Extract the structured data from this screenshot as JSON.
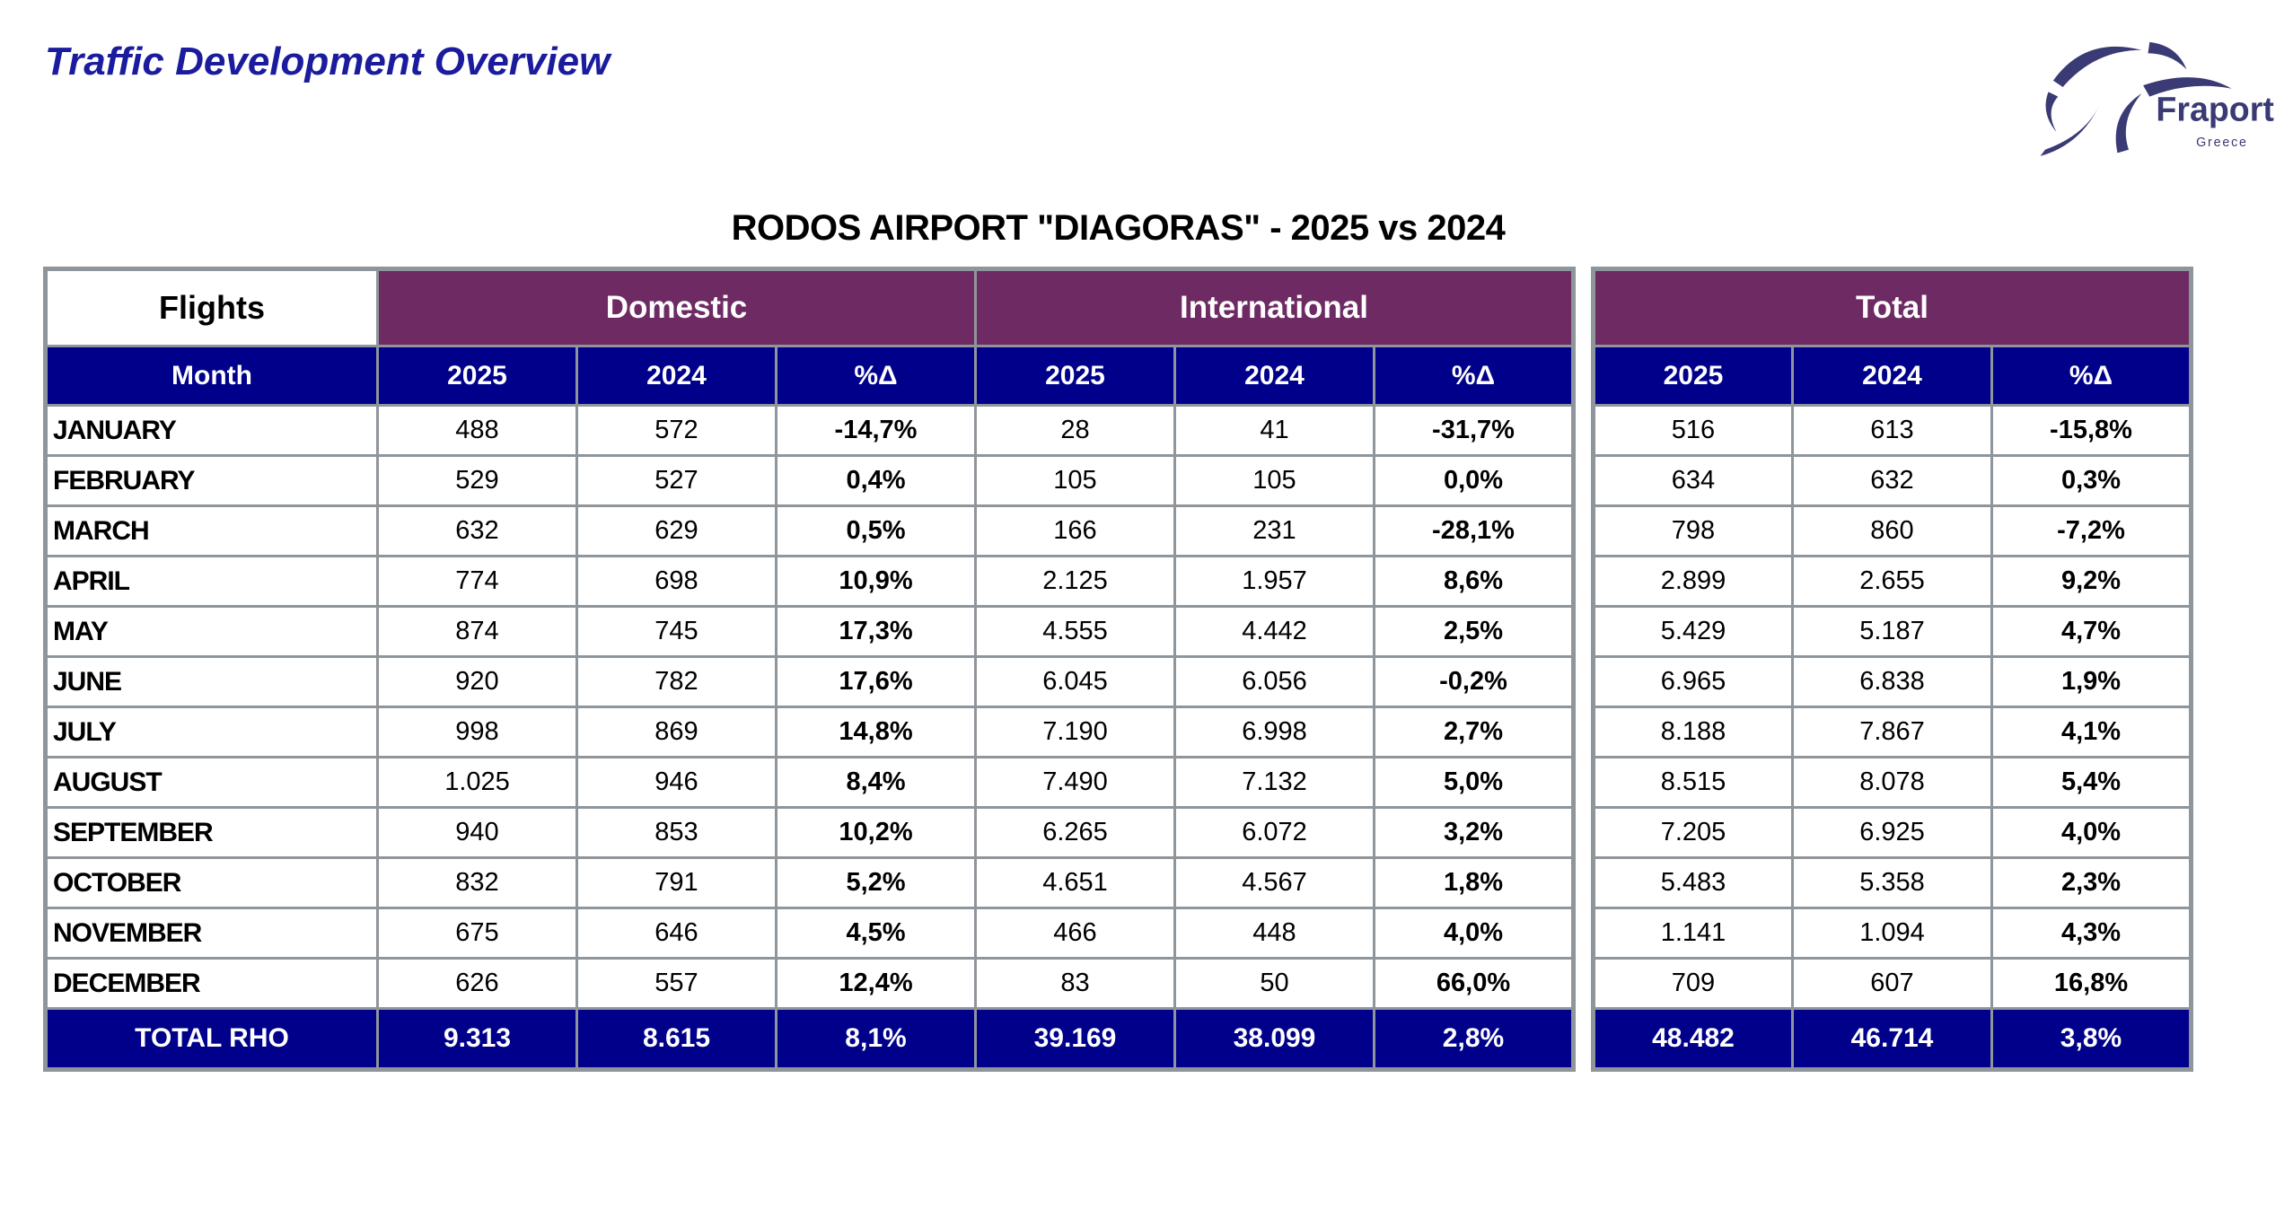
{
  "header": {
    "page_title": "Traffic Development Overview",
    "logo": {
      "brand": "Fraport",
      "region": "Greece"
    }
  },
  "table_title": "RODOS AIRPORT \"DIAGORAS\" - 2025 vs 2024",
  "flights_table": {
    "corner_label": "Flights",
    "month_header": "Month",
    "group_headers": {
      "domestic": "Domestic",
      "international": "International"
    },
    "col_headers": [
      "2025",
      "2024",
      "%Δ"
    ],
    "rows": [
      {
        "month": "JANUARY",
        "values": [
          "488",
          "572",
          "-14,7%",
          "28",
          "41",
          "-31,7%"
        ]
      },
      {
        "month": "FEBRUARY",
        "values": [
          "529",
          "527",
          "0,4%",
          "105",
          "105",
          "0,0%"
        ]
      },
      {
        "month": "MARCH",
        "values": [
          "632",
          "629",
          "0,5%",
          "166",
          "231",
          "-28,1%"
        ]
      },
      {
        "month": "APRIL",
        "values": [
          "774",
          "698",
          "10,9%",
          "2.125",
          "1.957",
          "8,6%"
        ]
      },
      {
        "month": "MAY",
        "values": [
          "874",
          "745",
          "17,3%",
          "4.555",
          "4.442",
          "2,5%"
        ]
      },
      {
        "month": "JUNE",
        "values": [
          "920",
          "782",
          "17,6%",
          "6.045",
          "6.056",
          "-0,2%"
        ]
      },
      {
        "month": "JULY",
        "values": [
          "998",
          "869",
          "14,8%",
          "7.190",
          "6.998",
          "2,7%"
        ]
      },
      {
        "month": "AUGUST",
        "values": [
          "1.025",
          "946",
          "8,4%",
          "7.490",
          "7.132",
          "5,0%"
        ]
      },
      {
        "month": "SEPTEMBER",
        "values": [
          "940",
          "853",
          "10,2%",
          "6.265",
          "6.072",
          "3,2%"
        ]
      },
      {
        "month": "OCTOBER",
        "values": [
          "832",
          "791",
          "5,2%",
          "4.651",
          "4.567",
          "1,8%"
        ]
      },
      {
        "month": "NOVEMBER",
        "values": [
          "675",
          "646",
          "4,5%",
          "466",
          "448",
          "4,0%"
        ]
      },
      {
        "month": "DECEMBER",
        "values": [
          "626",
          "557",
          "12,4%",
          "83",
          "50",
          "66,0%"
        ]
      }
    ],
    "total_row": {
      "label": "TOTAL RHO",
      "values": [
        "9.313",
        "8.615",
        "8,1%",
        "39.169",
        "38.099",
        "2,8%"
      ]
    }
  },
  "total_table": {
    "group_header": "Total",
    "col_headers": [
      "2025",
      "2024",
      "%Δ"
    ],
    "rows": [
      {
        "values": [
          "516",
          "613",
          "-15,8%"
        ]
      },
      {
        "values": [
          "634",
          "632",
          "0,3%"
        ]
      },
      {
        "values": [
          "798",
          "860",
          "-7,2%"
        ]
      },
      {
        "values": [
          "2.899",
          "2.655",
          "9,2%"
        ]
      },
      {
        "values": [
          "5.429",
          "5.187",
          "4,7%"
        ]
      },
      {
        "values": [
          "6.965",
          "6.838",
          "1,9%"
        ]
      },
      {
        "values": [
          "8.188",
          "7.867",
          "4,1%"
        ]
      },
      {
        "values": [
          "8.515",
          "8.078",
          "5,4%"
        ]
      },
      {
        "values": [
          "7.205",
          "6.925",
          "4,0%"
        ]
      },
      {
        "values": [
          "5.483",
          "5.358",
          "2,3%"
        ]
      },
      {
        "values": [
          "1.141",
          "1.094",
          "4,3%"
        ]
      },
      {
        "values": [
          "709",
          "607",
          "16,8%"
        ]
      }
    ],
    "total_row": {
      "values": [
        "48.482",
        "46.714",
        "3,8%"
      ]
    }
  },
  "colors": {
    "title_blue": "#1b1b9e",
    "header_purple": "#6e2a63",
    "header_navy": "#00008b",
    "grid_gray": "#8e959b",
    "logo_navy": "#3a3a74"
  }
}
